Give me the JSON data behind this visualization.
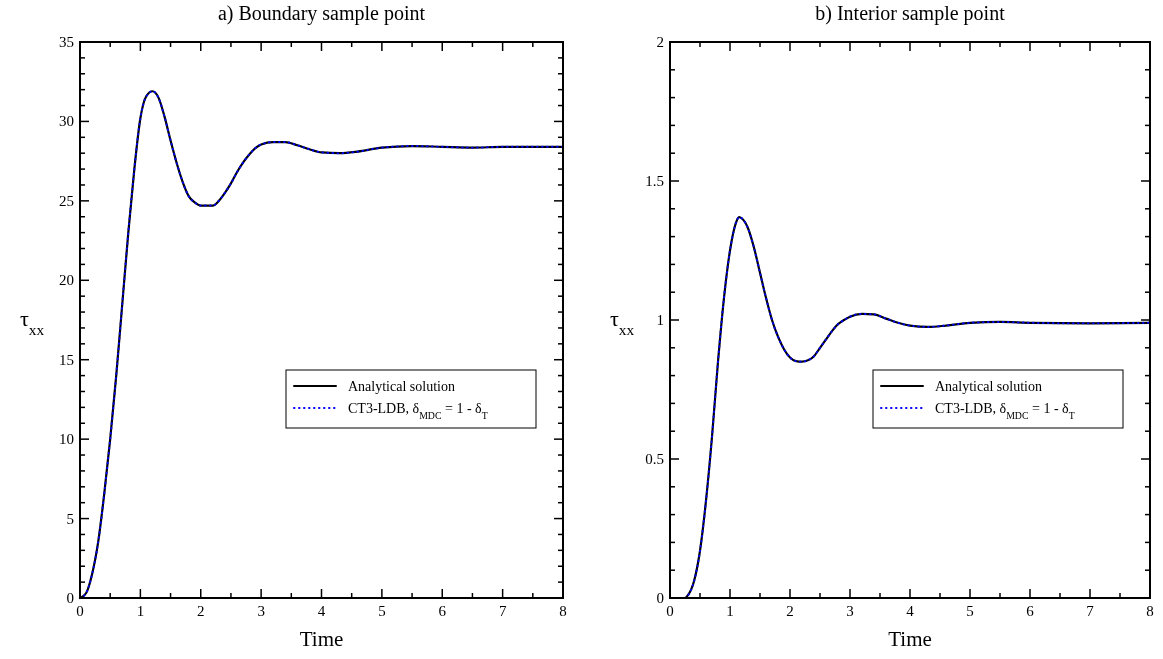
{
  "chart_data": [
    {
      "type": "line",
      "title": "a) Boundary sample point",
      "xlabel": "Time",
      "ylabel": "τ$_{xx}$",
      "xlim": [
        0,
        8
      ],
      "ylim": [
        0,
        35
      ],
      "xticks": [
        0,
        {
          "value": 0.5,
          "label": null
        },
        1,
        {
          "value": 1.5,
          "label": null
        },
        2,
        {
          "value": 2.5,
          "label": null
        },
        3,
        {
          "value": 3.5,
          "label": null
        },
        4,
        {
          "value": 4.5,
          "label": null
        },
        5,
        {
          "value": 5.5,
          "label": null
        },
        6,
        {
          "value": 6.5,
          "label": null
        },
        7,
        {
          "value": 7.5,
          "label": null
        },
        8
      ],
      "yticks": [
        0,
        {
          "value": 1,
          "label": null
        },
        {
          "value": 2,
          "label": null
        },
        {
          "value": 3,
          "label": null
        },
        {
          "value": 4,
          "label": null
        },
        5,
        {
          "value": 6,
          "label": null
        },
        {
          "value": 7,
          "label": null
        },
        {
          "value": 8,
          "label": null
        },
        {
          "value": 9,
          "label": null
        },
        10,
        {
          "value": 11,
          "label": null
        },
        {
          "value": 12,
          "label": null
        },
        {
          "value": 13,
          "label": null
        },
        {
          "value": 14,
          "label": null
        },
        15,
        {
          "value": 16,
          "label": null
        },
        {
          "value": 17,
          "label": null
        },
        {
          "value": 18,
          "label": null
        },
        {
          "value": 19,
          "label": null
        },
        20,
        {
          "value": 21,
          "label": null
        },
        {
          "value": 22,
          "label": null
        },
        {
          "value": 23,
          "label": null
        },
        {
          "value": 24,
          "label": null
        },
        25,
        {
          "value": 26,
          "label": null
        },
        {
          "value": 27,
          "label": null
        },
        {
          "value": 28,
          "label": null
        },
        {
          "value": 29,
          "label": null
        },
        30,
        {
          "value": 31,
          "label": null
        },
        {
          "value": 32,
          "label": null
        },
        {
          "value": 33,
          "label": null
        },
        {
          "value": 34,
          "label": null
        },
        35
      ],
      "grid": false,
      "legend": "right",
      "marker": "none",
      "x": [
        0,
        0.1,
        0.2,
        0.3,
        0.4,
        0.5,
        0.6,
        0.7,
        0.8,
        0.9,
        1.0,
        1.1,
        1.2,
        1.3,
        1.4,
        1.5,
        1.6,
        1.7,
        1.8,
        1.9,
        2.0,
        2.1,
        2.2,
        2.3,
        2.4,
        2.5,
        2.6,
        2.7,
        2.8,
        2.9,
        3.0,
        3.2,
        3.4,
        3.6,
        3.8,
        4.0,
        4.3,
        4.6,
        5.0,
        5.5,
        6.0,
        6.5,
        7.0,
        8.0
      ],
      "series": [
        {
          "name": "Analytical solution",
          "color": "#000000",
          "line_style": "solid",
          "values": [
            0,
            0.3,
            1.5,
            3.5,
            6.5,
            10,
            14,
            18.5,
            23,
            27,
            30.2,
            31.6,
            31.9,
            31.5,
            30.3,
            28.8,
            27.4,
            26.2,
            25.3,
            24.9,
            24.7,
            24.7,
            24.7,
            25.0,
            25.5,
            26.1,
            26.8,
            27.4,
            27.9,
            28.3,
            28.55,
            28.7,
            28.7,
            28.5,
            28.25,
            28.05,
            28.0,
            28.1,
            28.35,
            28.45,
            28.4,
            28.35,
            28.4,
            28.4
          ]
        },
        {
          "name": "CT3-LDB, δ$_{MDC}$ = 1 - δ$_{T}$",
          "color": "#0000ff",
          "line_style": "dotted",
          "values": [
            0,
            0.3,
            1.5,
            3.5,
            6.5,
            10,
            14,
            18.5,
            23,
            27,
            30.2,
            31.6,
            31.9,
            31.5,
            30.3,
            28.8,
            27.4,
            26.2,
            25.3,
            24.9,
            24.7,
            24.7,
            24.7,
            25.0,
            25.5,
            26.1,
            26.8,
            27.4,
            27.9,
            28.3,
            28.55,
            28.7,
            28.7,
            28.5,
            28.25,
            28.05,
            28.0,
            28.1,
            28.35,
            28.45,
            28.4,
            28.35,
            28.4,
            28.4
          ]
        }
      ]
    },
    {
      "type": "line",
      "title": "b) Interior sample point",
      "xlabel": "Time",
      "ylabel": "τ$_{xx}$",
      "xlim": [
        0,
        8
      ],
      "ylim": [
        0,
        2
      ],
      "xticks": [
        0,
        {
          "value": 0.5,
          "label": null
        },
        1,
        {
          "value": 1.5,
          "label": null
        },
        2,
        {
          "value": 2.5,
          "label": null
        },
        3,
        {
          "value": 3.5,
          "label": null
        },
        4,
        {
          "value": 4.5,
          "label": null
        },
        5,
        {
          "value": 5.5,
          "label": null
        },
        6,
        {
          "value": 6.5,
          "label": null
        },
        7,
        {
          "value": 7.5,
          "label": null
        },
        8
      ],
      "yticks": [
        0,
        {
          "value": 0.1,
          "label": null
        },
        {
          "value": 0.2,
          "label": null
        },
        {
          "value": 0.3,
          "label": null
        },
        {
          "value": 0.4,
          "label": null
        },
        0.5,
        {
          "value": 0.6,
          "label": null
        },
        {
          "value": 0.7,
          "label": null
        },
        {
          "value": 0.8,
          "label": null
        },
        {
          "value": 0.9,
          "label": null
        },
        1,
        {
          "value": 1.1,
          "label": null
        },
        {
          "value": 1.2,
          "label": null
        },
        {
          "value": 1.3,
          "label": null
        },
        {
          "value": 1.4,
          "label": null
        },
        1.5,
        {
          "value": 1.6,
          "label": null
        },
        {
          "value": 1.7,
          "label": null
        },
        {
          "value": 1.8,
          "label": null
        },
        {
          "value": 1.9,
          "label": null
        },
        2
      ],
      "grid": false,
      "legend": "right",
      "marker": "none",
      "x": [
        0,
        0.25,
        0.3,
        0.4,
        0.5,
        0.6,
        0.7,
        0.8,
        0.9,
        1.0,
        1.1,
        1.15,
        1.2,
        1.3,
        1.4,
        1.5,
        1.6,
        1.7,
        1.8,
        1.9,
        2.0,
        2.1,
        2.2,
        2.3,
        2.4,
        2.5,
        2.6,
        2.7,
        2.8,
        2.9,
        3.0,
        3.2,
        3.4,
        3.6,
        3.8,
        4.0,
        4.3,
        4.6,
        5.0,
        5.5,
        6.0,
        7.0,
        8.0
      ],
      "series": [
        {
          "name": "Analytical solution",
          "color": "#000000",
          "line_style": "solid",
          "values": [
            0,
            0,
            0.01,
            0.06,
            0.17,
            0.35,
            0.58,
            0.85,
            1.08,
            1.25,
            1.35,
            1.37,
            1.365,
            1.33,
            1.26,
            1.17,
            1.08,
            1.0,
            0.94,
            0.895,
            0.865,
            0.852,
            0.85,
            0.855,
            0.87,
            0.9,
            0.93,
            0.96,
            0.985,
            1.0,
            1.012,
            1.022,
            1.02,
            1.005,
            0.99,
            0.98,
            0.975,
            0.98,
            0.99,
            0.993,
            0.99,
            0.988,
            0.99
          ]
        },
        {
          "name": "CT3-LDB, δ$_{MDC}$ = 1 - δ$_{T}$",
          "color": "#0000ff",
          "line_style": "dotted",
          "values": [
            null,
            0,
            0.01,
            0.06,
            0.17,
            0.35,
            0.58,
            0.85,
            1.08,
            1.25,
            1.35,
            1.37,
            1.365,
            1.33,
            1.26,
            1.17,
            1.08,
            1.0,
            0.94,
            0.895,
            0.865,
            0.852,
            0.85,
            0.855,
            0.87,
            0.9,
            0.93,
            0.96,
            0.985,
            1.0,
            1.012,
            1.022,
            1.02,
            1.005,
            0.99,
            0.98,
            0.975,
            0.98,
            0.99,
            0.993,
            0.99,
            0.988,
            0.99
          ]
        }
      ]
    }
  ]
}
